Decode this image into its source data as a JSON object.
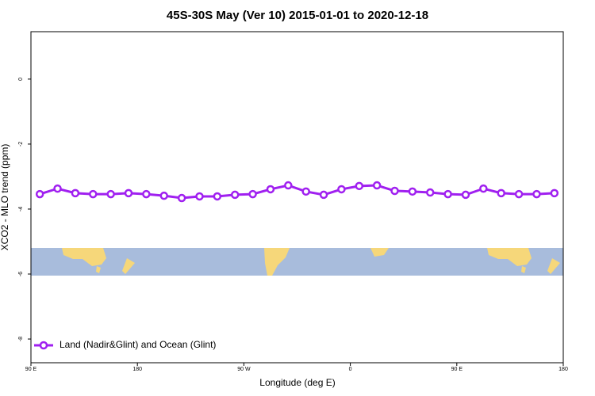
{
  "chart_data": {
    "type": "line",
    "title": "45S-30S May (Ver 10)   2015-01-01 to 2020-12-18",
    "x_label": "Longitude (deg E)",
    "y_label": "XCO2 - MLO trend (ppm)",
    "xlim": [
      90,
      540
    ],
    "ylim": [
      -8.73,
      1.46
    ],
    "xticks": [
      {
        "value": 90,
        "label": "90 E"
      },
      {
        "value": 180,
        "label": "180"
      },
      {
        "value": 270,
        "label": "90 W"
      },
      {
        "value": 360,
        "label": "0"
      },
      {
        "value": 450,
        "label": "90 E"
      },
      {
        "value": 540,
        "label": "180"
      }
    ],
    "yticks": [
      0,
      -2,
      -4,
      -6,
      -8
    ],
    "legend_position": "bottom-left",
    "x": [
      97.5,
      112.5,
      127.5,
      142.5,
      157.5,
      172.5,
      187.5,
      202.5,
      217.5,
      232.5,
      247.5,
      262.5,
      277.5,
      292.5,
      307.5,
      322.5,
      337.5,
      352.5,
      367.5,
      382.5,
      397.5,
      412.5,
      427.5,
      442.5,
      457.5,
      472.5,
      487.5,
      502.5,
      517.5,
      532.5
    ],
    "series": [
      {
        "name": "Land (Nadir&Glint) and Ocean (Glint)",
        "color": "#a020f0",
        "values": [
          -3.54,
          -3.37,
          -3.51,
          -3.54,
          -3.54,
          -3.51,
          -3.54,
          -3.59,
          -3.66,
          -3.61,
          -3.61,
          -3.56,
          -3.54,
          -3.39,
          -3.27,
          -3.46,
          -3.56,
          -3.39,
          -3.29,
          -3.27,
          -3.44,
          -3.46,
          -3.49,
          -3.54,
          -3.56,
          -3.37,
          -3.51,
          -3.54,
          -3.54,
          -3.51
        ]
      }
    ]
  }
}
